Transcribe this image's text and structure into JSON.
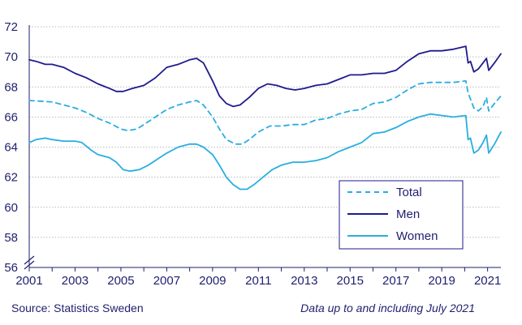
{
  "chart_data": {
    "type": "line",
    "title": "",
    "xlabel": "",
    "ylabel": "",
    "xlim": [
      2001,
      2021.58
    ],
    "ylim": [
      56,
      72
    ],
    "y_ticks": [
      56,
      58,
      60,
      62,
      64,
      66,
      68,
      70,
      72
    ],
    "x_ticks": [
      2001,
      2003,
      2005,
      2007,
      2009,
      2011,
      2013,
      2015,
      2017,
      2019,
      2021
    ],
    "grid": "horizontal",
    "y_axis_break": true,
    "legend_position": "bottom-right",
    "colors": {
      "total": "#29aee0",
      "men": "#1f1a8c",
      "women": "#29aee0"
    },
    "series": [
      {
        "name": "Total",
        "style": "dashed",
        "points": [
          [
            2001,
            67.1
          ],
          [
            2002,
            67.0
          ],
          [
            2002.5,
            66.8
          ],
          [
            2003,
            66.6
          ],
          [
            2003.5,
            66.3
          ],
          [
            2004,
            65.9
          ],
          [
            2004.5,
            65.6
          ],
          [
            2005,
            65.2
          ],
          [
            2005.3,
            65.1
          ],
          [
            2005.7,
            65.2
          ],
          [
            2006,
            65.5
          ],
          [
            2006.5,
            66.0
          ],
          [
            2007,
            66.5
          ],
          [
            2007.5,
            66.8
          ],
          [
            2008,
            67.0
          ],
          [
            2008.3,
            67.1
          ],
          [
            2008.6,
            66.8
          ],
          [
            2009,
            66.0
          ],
          [
            2009.3,
            65.2
          ],
          [
            2009.6,
            64.5
          ],
          [
            2010,
            64.2
          ],
          [
            2010.3,
            64.2
          ],
          [
            2010.6,
            64.5
          ],
          [
            2011,
            65.0
          ],
          [
            2011.5,
            65.4
          ],
          [
            2012,
            65.4
          ],
          [
            2012.5,
            65.5
          ],
          [
            2013,
            65.5
          ],
          [
            2013.5,
            65.8
          ],
          [
            2014,
            65.9
          ],
          [
            2014.5,
            66.2
          ],
          [
            2015,
            66.4
          ],
          [
            2015.5,
            66.5
          ],
          [
            2016,
            66.9
          ],
          [
            2016.5,
            67.0
          ],
          [
            2017,
            67.3
          ],
          [
            2017.5,
            67.8
          ],
          [
            2018,
            68.2
          ],
          [
            2018.5,
            68.3
          ],
          [
            2019,
            68.3
          ],
          [
            2019.5,
            68.3
          ],
          [
            2020.05,
            68.4
          ],
          [
            2020.15,
            67.6
          ],
          [
            2020.3,
            67.0
          ],
          [
            2020.4,
            66.6
          ],
          [
            2020.6,
            66.4
          ],
          [
            2020.8,
            66.7
          ],
          [
            2020.95,
            67.3
          ],
          [
            2021.05,
            66.4
          ],
          [
            2021.3,
            66.9
          ],
          [
            2021.58,
            67.4
          ]
        ]
      },
      {
        "name": "Men",
        "style": "solid",
        "points": [
          [
            2001,
            69.8
          ],
          [
            2001.3,
            69.7
          ],
          [
            2001.7,
            69.5
          ],
          [
            2002,
            69.5
          ],
          [
            2002.5,
            69.3
          ],
          [
            2003,
            68.9
          ],
          [
            2003.5,
            68.6
          ],
          [
            2004,
            68.2
          ],
          [
            2004.5,
            67.9
          ],
          [
            2004.8,
            67.7
          ],
          [
            2005.1,
            67.7
          ],
          [
            2005.5,
            67.9
          ],
          [
            2006,
            68.1
          ],
          [
            2006.5,
            68.6
          ],
          [
            2007,
            69.3
          ],
          [
            2007.5,
            69.5
          ],
          [
            2008,
            69.8
          ],
          [
            2008.3,
            69.9
          ],
          [
            2008.6,
            69.6
          ],
          [
            2009,
            68.4
          ],
          [
            2009.3,
            67.4
          ],
          [
            2009.6,
            66.9
          ],
          [
            2009.9,
            66.7
          ],
          [
            2010.2,
            66.8
          ],
          [
            2010.6,
            67.3
          ],
          [
            2011,
            67.9
          ],
          [
            2011.4,
            68.2
          ],
          [
            2011.8,
            68.1
          ],
          [
            2012.2,
            67.9
          ],
          [
            2012.6,
            67.8
          ],
          [
            2013,
            67.9
          ],
          [
            2013.5,
            68.1
          ],
          [
            2014,
            68.2
          ],
          [
            2014.5,
            68.5
          ],
          [
            2015,
            68.8
          ],
          [
            2015.5,
            68.8
          ],
          [
            2016,
            68.9
          ],
          [
            2016.5,
            68.9
          ],
          [
            2017,
            69.1
          ],
          [
            2017.5,
            69.7
          ],
          [
            2018,
            70.2
          ],
          [
            2018.5,
            70.4
          ],
          [
            2019,
            70.4
          ],
          [
            2019.5,
            70.5
          ],
          [
            2020.05,
            70.7
          ],
          [
            2020.15,
            69.6
          ],
          [
            2020.25,
            69.7
          ],
          [
            2020.4,
            69.0
          ],
          [
            2020.6,
            69.2
          ],
          [
            2020.8,
            69.6
          ],
          [
            2020.95,
            69.9
          ],
          [
            2021.05,
            69.1
          ],
          [
            2021.3,
            69.6
          ],
          [
            2021.58,
            70.2
          ]
        ]
      },
      {
        "name": "Women",
        "style": "solid",
        "points": [
          [
            2001,
            64.3
          ],
          [
            2001.3,
            64.5
          ],
          [
            2001.7,
            64.6
          ],
          [
            2002,
            64.5
          ],
          [
            2002.5,
            64.4
          ],
          [
            2003,
            64.4
          ],
          [
            2003.3,
            64.3
          ],
          [
            2003.7,
            63.8
          ],
          [
            2004,
            63.5
          ],
          [
            2004.5,
            63.3
          ],
          [
            2004.8,
            63.0
          ],
          [
            2005.1,
            62.5
          ],
          [
            2005.4,
            62.4
          ],
          [
            2005.8,
            62.5
          ],
          [
            2006.2,
            62.8
          ],
          [
            2006.6,
            63.2
          ],
          [
            2007,
            63.6
          ],
          [
            2007.5,
            64.0
          ],
          [
            2008,
            64.2
          ],
          [
            2008.3,
            64.2
          ],
          [
            2008.6,
            64.0
          ],
          [
            2009,
            63.5
          ],
          [
            2009.3,
            62.8
          ],
          [
            2009.6,
            62.0
          ],
          [
            2009.9,
            61.5
          ],
          [
            2010.2,
            61.2
          ],
          [
            2010.5,
            61.2
          ],
          [
            2010.8,
            61.5
          ],
          [
            2011.2,
            62.0
          ],
          [
            2011.6,
            62.5
          ],
          [
            2012,
            62.8
          ],
          [
            2012.5,
            63.0
          ],
          [
            2013,
            63.0
          ],
          [
            2013.5,
            63.1
          ],
          [
            2014,
            63.3
          ],
          [
            2014.5,
            63.7
          ],
          [
            2015,
            64.0
          ],
          [
            2015.5,
            64.3
          ],
          [
            2016,
            64.9
          ],
          [
            2016.5,
            65.0
          ],
          [
            2017,
            65.3
          ],
          [
            2017.5,
            65.7
          ],
          [
            2018,
            66.0
          ],
          [
            2018.5,
            66.2
          ],
          [
            2019,
            66.1
          ],
          [
            2019.5,
            66.0
          ],
          [
            2020.05,
            66.1
          ],
          [
            2020.15,
            64.5
          ],
          [
            2020.25,
            64.6
          ],
          [
            2020.4,
            63.6
          ],
          [
            2020.6,
            63.8
          ],
          [
            2020.8,
            64.3
          ],
          [
            2020.95,
            64.8
          ],
          [
            2021.05,
            63.6
          ],
          [
            2021.3,
            64.2
          ],
          [
            2021.58,
            65.0
          ]
        ]
      }
    ]
  },
  "footer": {
    "source": "Source: Statistics Sweden",
    "note": "Data up to and including July 2021"
  }
}
